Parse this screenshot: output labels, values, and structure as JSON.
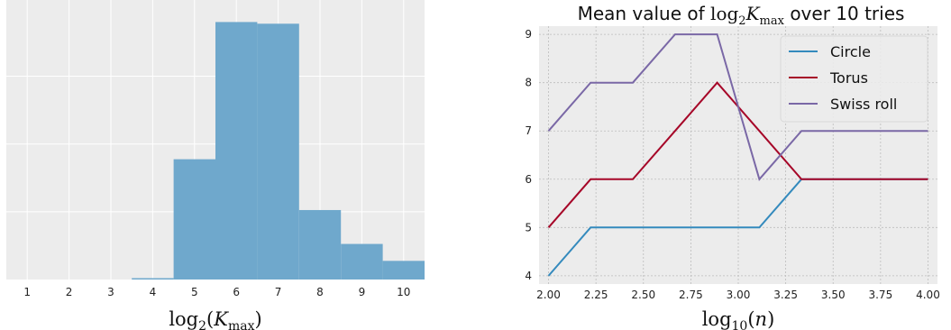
{
  "chart_data": [
    {
      "type": "bar",
      "title": "",
      "xlabel": "log2(Kmax)",
      "ylabel": "",
      "categories": [
        "1",
        "2",
        "3",
        "4",
        "5",
        "6",
        "7",
        "8",
        "9",
        "10"
      ],
      "values": [
        0,
        0,
        0,
        0.08,
        7.1,
        15.2,
        15.1,
        4.1,
        2.1,
        1.1
      ],
      "ylim": [
        0,
        16.5
      ],
      "xlim": [
        0.5,
        10.5
      ],
      "grid": true,
      "colors": {
        "bar": "#6fa8cc",
        "background": "#ececec",
        "grid": "#ffffff"
      }
    },
    {
      "type": "line",
      "title": "Mean value of log2 Kmax over 10 tries",
      "title_parts": {
        "prefix": "Mean value of",
        "math": "log",
        "math_sub": "2",
        "math_var": "K",
        "math_var_sub": "max",
        "suffix": "over 10 tries"
      },
      "xlabel": "log10(n)",
      "ylabel": "",
      "x": [
        2.0,
        2.222,
        2.444,
        2.667,
        2.889,
        3.111,
        3.333,
        3.556,
        3.778,
        4.0
      ],
      "series": [
        {
          "name": "Circle",
          "color": "#348abd",
          "values": [
            4,
            5,
            5,
            5,
            5,
            5,
            6,
            6,
            6,
            6
          ]
        },
        {
          "name": "Torus",
          "color": "#a60628",
          "values": [
            5,
            6,
            6,
            7,
            8,
            7,
            6,
            6,
            6,
            6
          ]
        },
        {
          "name": "Swiss roll",
          "color": "#7a68a6",
          "values": [
            7,
            8,
            8,
            9,
            9,
            6,
            7,
            7,
            7,
            7
          ]
        }
      ],
      "xticks": [
        "2.00",
        "2.25",
        "2.50",
        "2.75",
        "3.00",
        "3.25",
        "3.50",
        "3.75",
        "4.00"
      ],
      "yticks": [
        "4",
        "5",
        "6",
        "7",
        "8",
        "9"
      ],
      "xlim": [
        1.95,
        4.05
      ],
      "ylim": [
        3.83,
        9.17
      ],
      "legend": "upper right",
      "grid": true,
      "colors": {
        "background": "#ececec",
        "grid": "#bcbcbc"
      }
    }
  ]
}
